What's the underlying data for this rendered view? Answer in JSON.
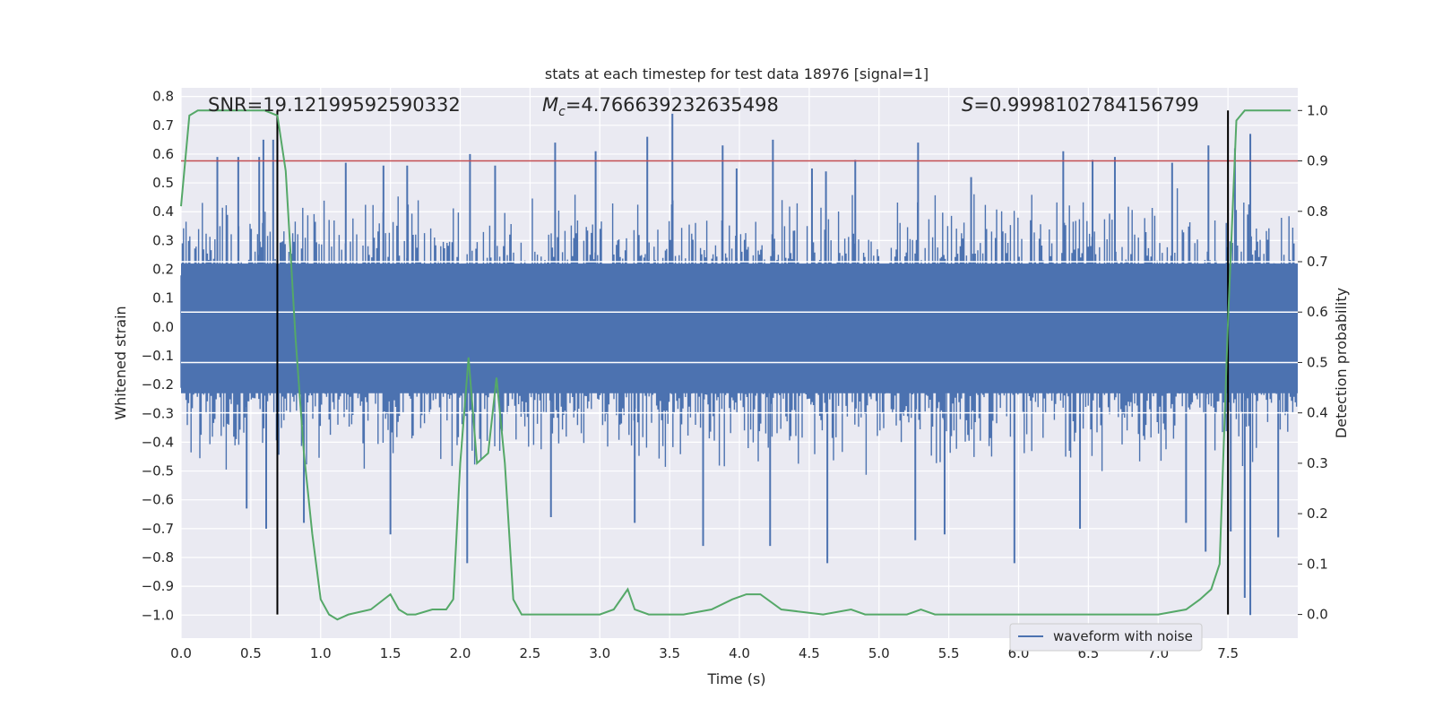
{
  "chart_data": {
    "type": "line",
    "title": "stats at each timestep for test data 18976 [signal=1]",
    "xlabel": "Time (s)",
    "ylabel": "Whitened strain",
    "y2label": "Detection probability",
    "xlim": [
      0.0,
      8.0
    ],
    "ylim": [
      -1.08,
      0.83
    ],
    "y2lim": [
      -0.047,
      1.045
    ],
    "x_ticks": [
      "0.0",
      "0.5",
      "1.0",
      "1.5",
      "2.0",
      "2.5",
      "3.0",
      "3.5",
      "4.0",
      "4.5",
      "5.0",
      "5.5",
      "6.0",
      "6.5",
      "7.0",
      "7.5"
    ],
    "y_ticks": [
      "0.8",
      "0.7",
      "0.6",
      "0.5",
      "0.4",
      "0.3",
      "0.2",
      "0.1",
      "0.0",
      "−0.1",
      "−0.2",
      "−0.3",
      "−0.4",
      "−0.5",
      "−0.6",
      "−0.7",
      "−0.8",
      "−0.9",
      "−1.0"
    ],
    "y2_ticks": [
      "1.0",
      "0.9",
      "0.8",
      "0.7",
      "0.6",
      "0.5",
      "0.4",
      "0.3",
      "0.2",
      "0.1",
      "0.0"
    ],
    "grid": true,
    "legend_placement": "lower-right",
    "annotations": {
      "snr": "SNR=19.12199592590332",
      "mc_symbol": "M",
      "mc_sub": "c",
      "mc_value": "=4.766639232635498",
      "s_symbol": "S",
      "s_value": "=0.9998102784156799"
    },
    "colors": {
      "waveform": "#4c72b0",
      "probability": "#55a868",
      "threshold": "#c44e52",
      "markers": "#000000",
      "plot_bg": "#eaeaf2",
      "grid": "#ffffff"
    },
    "threshold": 0.9,
    "vertical_markers": [
      0.69,
      7.5
    ],
    "series": [
      {
        "name": "waveform with noise",
        "note": "dense noisy strain trace, sampled envelope peaks",
        "spikes_up": [
          [
            0.26,
            0.59
          ],
          [
            0.41,
            0.59
          ],
          [
            0.56,
            0.59
          ],
          [
            0.59,
            0.65
          ],
          [
            0.66,
            0.65
          ],
          [
            1.18,
            0.57
          ],
          [
            1.45,
            0.56
          ],
          [
            1.62,
            0.56
          ],
          [
            2.07,
            0.6
          ],
          [
            2.25,
            0.56
          ],
          [
            2.68,
            0.64
          ],
          [
            2.97,
            0.61
          ],
          [
            3.34,
            0.66
          ],
          [
            3.52,
            0.74
          ],
          [
            3.88,
            0.63
          ],
          [
            3.98,
            0.55
          ],
          [
            4.24,
            0.65
          ],
          [
            4.52,
            0.55
          ],
          [
            4.62,
            0.54
          ],
          [
            4.83,
            0.58
          ],
          [
            5.28,
            0.64
          ],
          [
            5.66,
            0.52
          ],
          [
            6.32,
            0.61
          ],
          [
            6.53,
            0.58
          ],
          [
            6.69,
            0.59
          ],
          [
            7.1,
            0.57
          ],
          [
            7.36,
            0.63
          ],
          [
            7.55,
            0.62
          ],
          [
            7.66,
            0.67
          ]
        ],
        "spikes_down": [
          [
            0.47,
            -0.63
          ],
          [
            0.61,
            -0.7
          ],
          [
            0.88,
            -0.68
          ],
          [
            1.5,
            -0.72
          ],
          [
            2.05,
            -0.82
          ],
          [
            2.65,
            -0.66
          ],
          [
            3.25,
            -0.68
          ],
          [
            3.74,
            -0.76
          ],
          [
            4.22,
            -0.76
          ],
          [
            4.63,
            -0.82
          ],
          [
            5.26,
            -0.74
          ],
          [
            5.47,
            -0.72
          ],
          [
            5.97,
            -0.82
          ],
          [
            6.44,
            -0.7
          ],
          [
            7.2,
            -0.68
          ],
          [
            7.34,
            -0.78
          ],
          [
            7.52,
            -0.71
          ],
          [
            7.62,
            -0.94
          ],
          [
            7.66,
            -1.0
          ],
          [
            7.86,
            -0.73
          ]
        ]
      },
      {
        "name": "",
        "axis": "right",
        "x": [
          0.0,
          0.06,
          0.12,
          0.6,
          0.69,
          0.75,
          0.82,
          0.88,
          0.94,
          1.0,
          1.06,
          1.12,
          1.2,
          1.36,
          1.5,
          1.56,
          1.62,
          1.68,
          1.8,
          1.9,
          1.95,
          2.0,
          2.06,
          2.12,
          2.2,
          2.26,
          2.32,
          2.38,
          2.44,
          2.5,
          2.62,
          3.0,
          3.1,
          3.2,
          3.25,
          3.35,
          3.45,
          3.6,
          3.8,
          3.95,
          4.05,
          4.15,
          4.3,
          4.6,
          4.8,
          4.9,
          5.0,
          5.2,
          5.3,
          5.4,
          5.6,
          5.8,
          6.0,
          6.2,
          6.4,
          6.6,
          7.0,
          7.2,
          7.3,
          7.38,
          7.44,
          7.5,
          7.56,
          7.62,
          7.68,
          7.75,
          7.95
        ],
        "y": [
          0.81,
          0.99,
          1.0,
          1.0,
          0.99,
          0.88,
          0.55,
          0.32,
          0.16,
          0.03,
          0.0,
          -0.01,
          0.0,
          0.01,
          0.04,
          0.01,
          0.0,
          0.0,
          0.01,
          0.01,
          0.03,
          0.3,
          0.51,
          0.3,
          0.32,
          0.47,
          0.3,
          0.03,
          0.0,
          0.0,
          0.0,
          0.0,
          0.01,
          0.05,
          0.01,
          0.0,
          0.0,
          0.0,
          0.01,
          0.03,
          0.04,
          0.04,
          0.01,
          0.0,
          0.01,
          0.0,
          0.0,
          0.0,
          0.01,
          0.0,
          0.0,
          0.0,
          0.0,
          0.0,
          0.0,
          0.0,
          0.0,
          0.01,
          0.03,
          0.05,
          0.1,
          0.58,
          0.98,
          1.0,
          1.0,
          1.0,
          1.0
        ]
      }
    ]
  }
}
